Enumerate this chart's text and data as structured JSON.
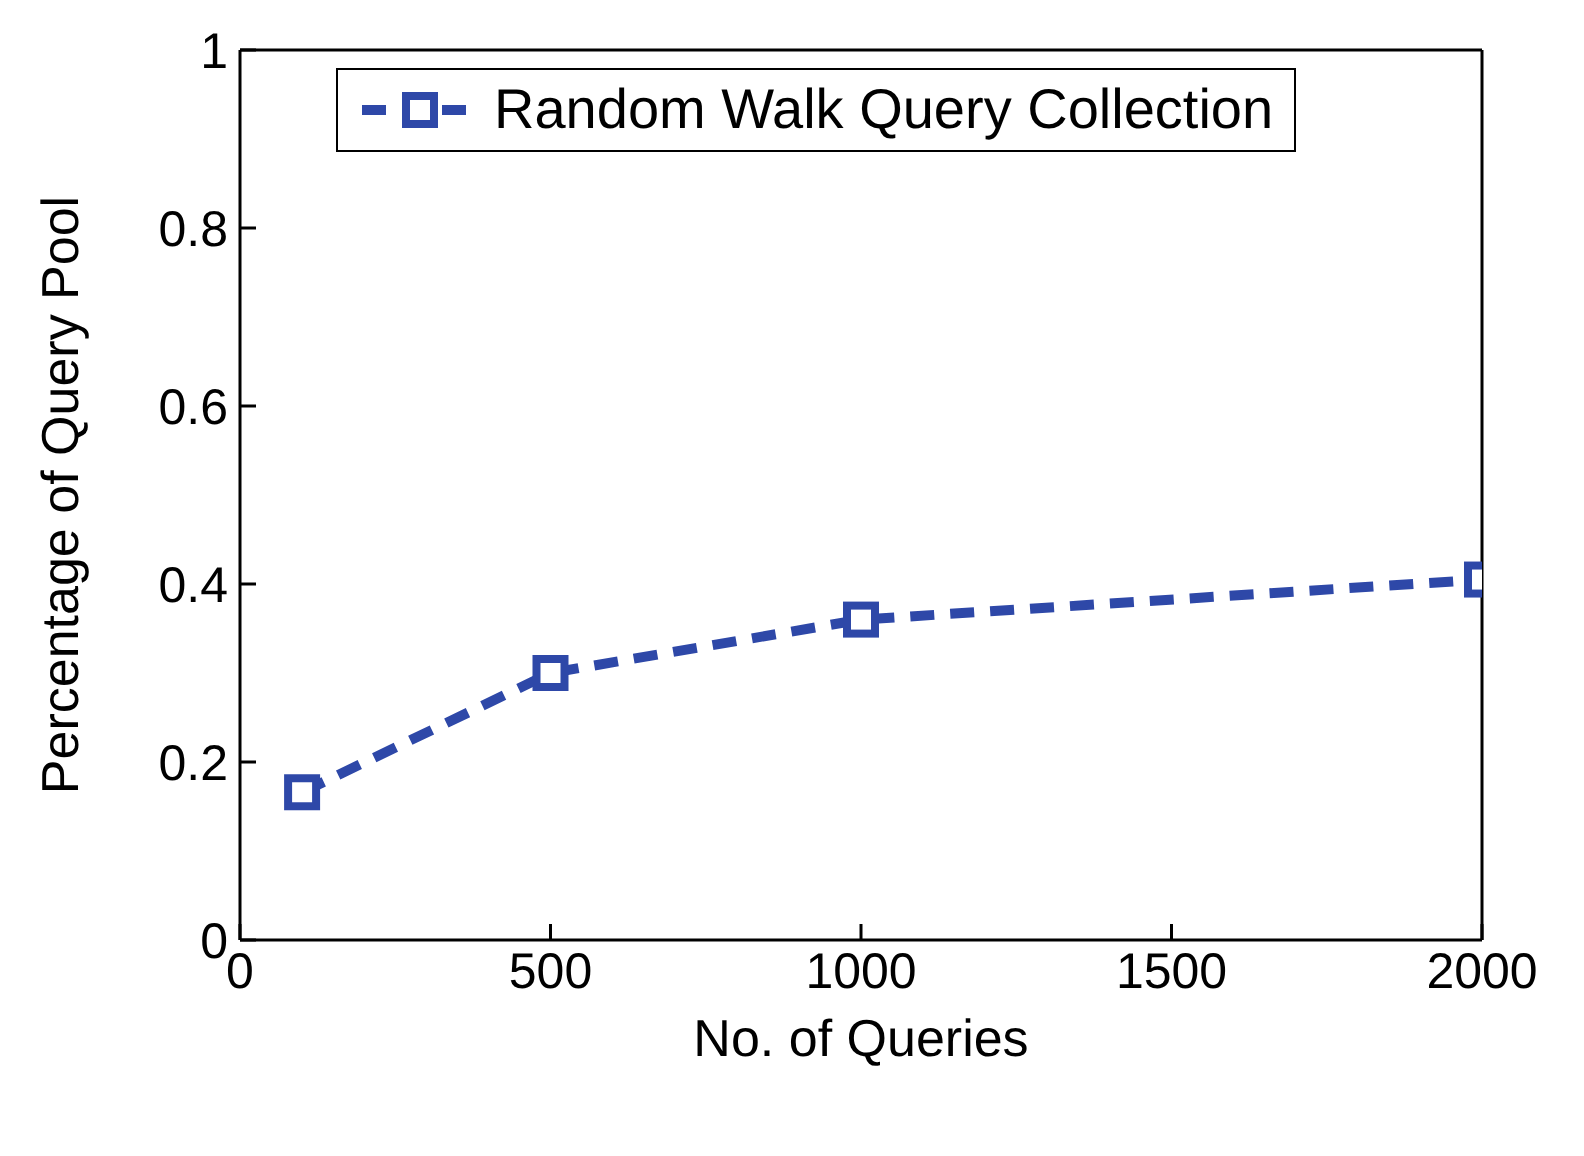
{
  "chart_data": {
    "type": "line",
    "xlabel": "No. of Queries",
    "ylabel": "Percentage of Query Pool",
    "x": [
      100,
      500,
      1000,
      2000
    ],
    "series": [
      {
        "name": "Random Walk Query Collection",
        "color": "#2e48a8",
        "values": [
          0.166,
          0.3,
          0.36,
          0.405
        ]
      }
    ],
    "xlim": [
      0,
      2000
    ],
    "xticks": [
      0,
      500,
      1000,
      1500,
      2000
    ],
    "ylim": [
      0,
      1
    ],
    "yticks": [
      0,
      0.2,
      0.4,
      0.6,
      0.8,
      1
    ],
    "marker": "square",
    "line_style": "dashed",
    "legend": "top",
    "grid": false
  }
}
